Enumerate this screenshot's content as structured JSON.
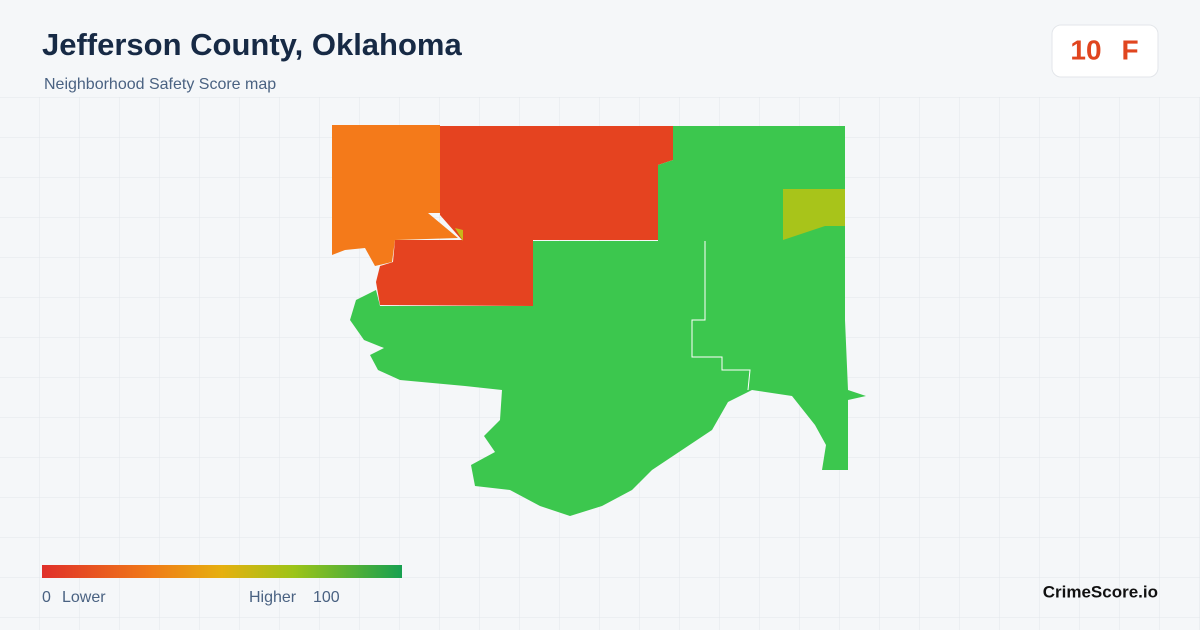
{
  "header": {
    "title": "Jefferson County, Oklahoma",
    "subtitle": "Neighborhood Safety Score map"
  },
  "badge": {
    "score": 10,
    "grade": "F"
  },
  "legend": {
    "min": 0,
    "min_label": "Lower",
    "max_label": "Higher",
    "max": 100
  },
  "footer": {
    "brand": "CrimeScore.io"
  }
}
